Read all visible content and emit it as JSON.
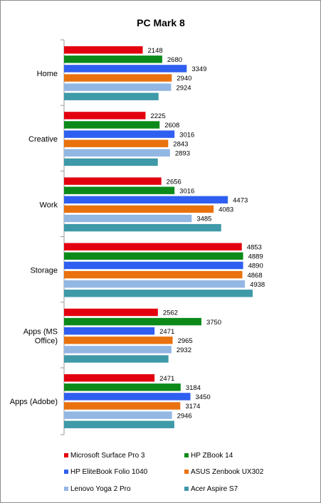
{
  "chart_data": {
    "type": "bar",
    "orientation": "horizontal",
    "title": "PC Mark 8",
    "xlabel": "",
    "ylabel": "",
    "xlim": [
      0,
      5500
    ],
    "grid": false,
    "legend_position": "bottom",
    "categories": [
      [
        "Home"
      ],
      [
        "Creative"
      ],
      [
        "Work"
      ],
      [
        "Storage"
      ],
      [
        "Apps (MS",
        "Office)"
      ],
      [
        "Apps (Adobe)"
      ]
    ],
    "series": [
      {
        "name": "Microsoft Surface Pro 3",
        "color": "#e3000f",
        "values": [
          2148,
          2225,
          2656,
          4853,
          2562,
          2471
        ]
      },
      {
        "name": "HP ZBook 14",
        "color": "#0b8a1a",
        "values": [
          2680,
          2608,
          3016,
          4889,
          3750,
          3184
        ]
      },
      {
        "name": "HP EliteBook Folio 1040",
        "color": "#2f5ff0",
        "values": [
          3349,
          3016,
          4473,
          4890,
          2471,
          3450
        ]
      },
      {
        "name": "ASUS Zenbook UX302",
        "color": "#e9720e",
        "values": [
          2940,
          2843,
          4083,
          4868,
          2965,
          3174
        ]
      },
      {
        "name": "Lenovo Yoga 2 Pro",
        "color": "#93b7e3",
        "values": [
          2924,
          2893,
          3485,
          4938,
          2932,
          2946
        ]
      },
      {
        "name": "Acer Aspire S7",
        "color": "#3e99a8",
        "values": [
          null,
          null,
          null,
          null,
          null,
          null
        ]
      }
    ]
  }
}
